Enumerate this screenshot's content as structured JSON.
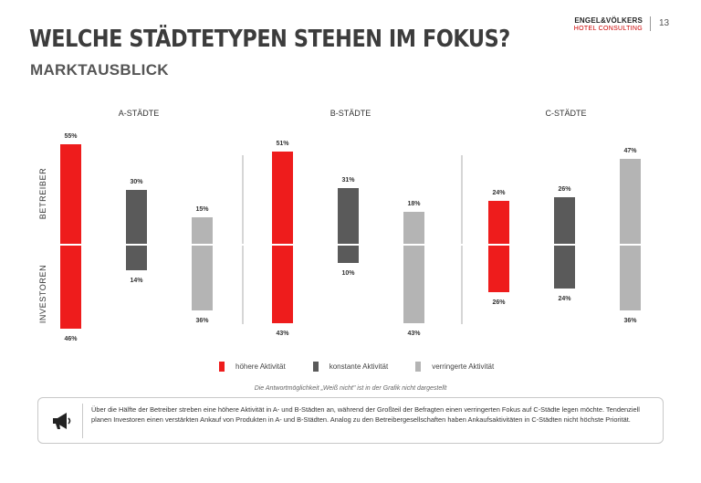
{
  "header": {
    "title": "WELCHE STÄDTETYPEN STEHEN IM FOKUS?",
    "subtitle": "MARKTAUSBLICK",
    "logo_line1": "ENGEL&VÖLKERS",
    "logo_line2": "HOTEL CONSULTING",
    "page_number": "13"
  },
  "colors": {
    "higher": "#ee1c1c",
    "constant": "#5a5a5a",
    "reduced": "#b4b4b4"
  },
  "chart_data": {
    "type": "bar",
    "title": "",
    "groups": [
      "A-STÄDTE",
      "B-STÄDTE",
      "C-STÄDTE"
    ],
    "y_axis_labels": {
      "upper": "BETREIBER",
      "lower": "INVESTOREN"
    },
    "series": [
      {
        "name": "höhere Aktivität",
        "betreiber": [
          55,
          51,
          24
        ],
        "investoren": [
          46,
          43,
          26
        ]
      },
      {
        "name": "konstante Aktivität",
        "betreiber": [
          30,
          31,
          26
        ],
        "investoren": [
          14,
          10,
          24
        ]
      },
      {
        "name": "verringerte Aktivität",
        "betreiber": [
          15,
          18,
          47
        ],
        "investoren": [
          36,
          43,
          36
        ]
      }
    ],
    "value_suffix": "%"
  },
  "legend": {
    "higher": "höhere Aktivität",
    "constant": "konstante Aktivität",
    "reduced": "verringerte Aktivität"
  },
  "footnote": "Die Antwortmöglichkeit „Weiß nicht\" ist in der Grafik nicht dargestellt",
  "info": {
    "icon": "megaphone-icon",
    "text": "Über die Hälfte der Betreiber streben eine höhere Aktivität in A- und B-Städten an, während der Großteil der Befragten einen verringerten Fokus auf C-Städte legen möchte. Tendenziell planen Investoren einen verstärkten Ankauf von Produkten in A- und B-Städten. Analog zu den Betreibergesellschaften haben Ankaufsaktivitäten in C-Städten nicht höchste Priorität."
  }
}
